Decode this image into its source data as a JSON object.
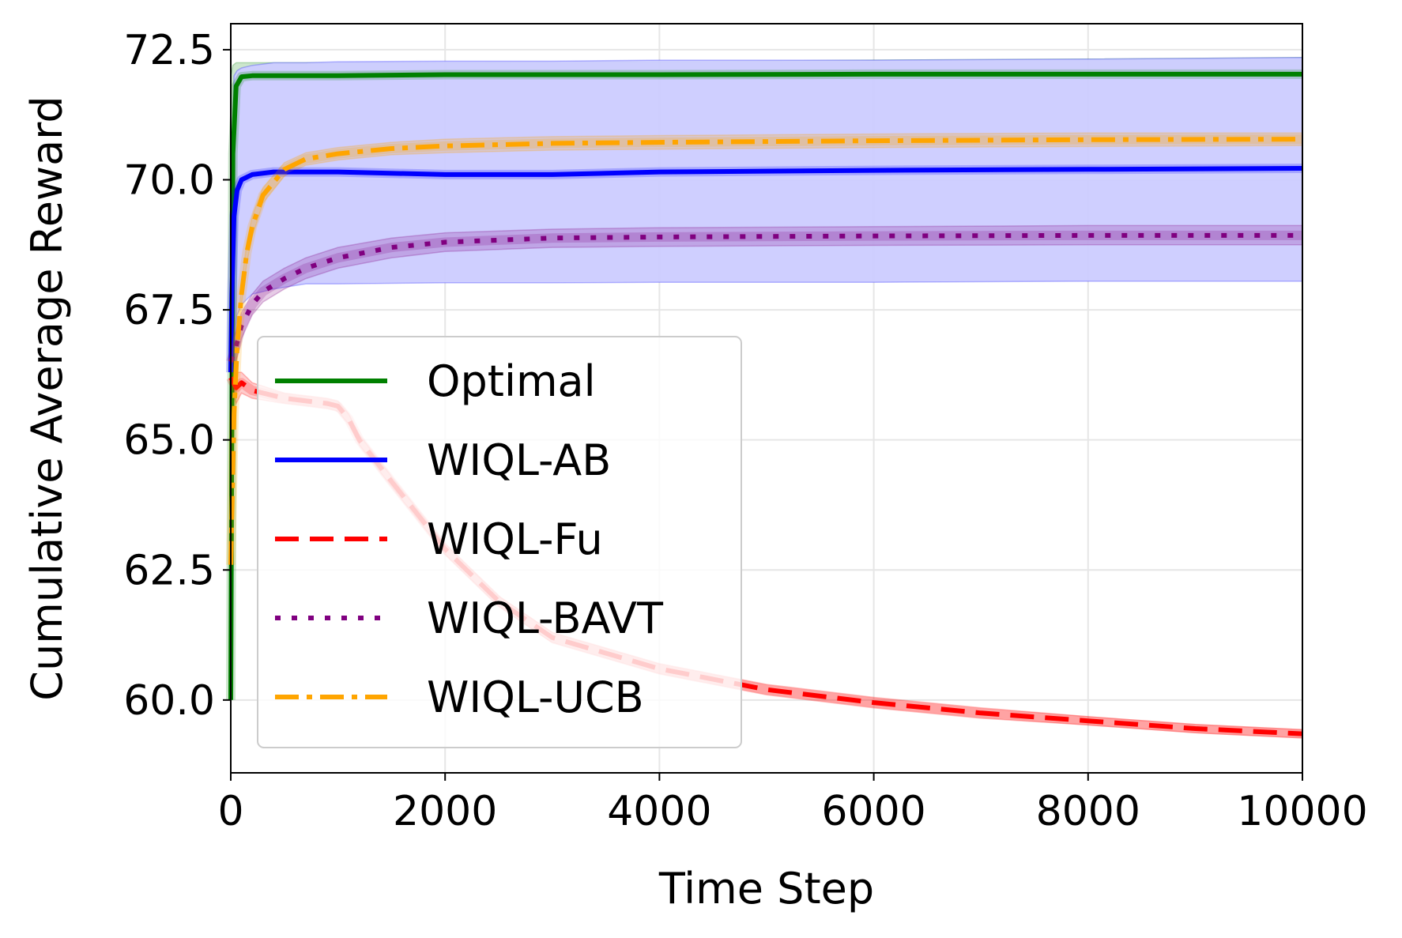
{
  "chart_data": {
    "type": "line",
    "xlabel": "Time Step",
    "ylabel": "Cumulative Average Reward",
    "xlim": [
      0,
      10000
    ],
    "ylim": [
      58.6,
      73.0
    ],
    "xticks": [
      0,
      2000,
      4000,
      6000,
      8000,
      10000
    ],
    "xtick_labels": [
      "0",
      "2000",
      "4000",
      "6000",
      "8000",
      "10000"
    ],
    "yticks": [
      60.0,
      62.5,
      65.0,
      67.5,
      70.0,
      72.5
    ],
    "ytick_labels": [
      "60.0",
      "62.5",
      "65.0",
      "67.5",
      "70.0",
      "72.5"
    ],
    "grid": true,
    "legend_position": "lower-left",
    "series": [
      {
        "name": "Optimal",
        "color": "#008000",
        "style": "solid",
        "x": [
          0,
          20,
          50,
          100,
          200,
          400,
          1000,
          2000,
          4000,
          6000,
          8000,
          10000
        ],
        "y": [
          60.0,
          70.5,
          71.8,
          71.98,
          72.0,
          72.0,
          72.0,
          72.02,
          72.02,
          72.03,
          72.03,
          72.03
        ],
        "band_upper": [
          72.0,
          72.2,
          72.25,
          72.25,
          72.25,
          72.25,
          72.25,
          72.25,
          72.27,
          72.3,
          72.32,
          72.35
        ],
        "band_lower": [
          60.0,
          69.5,
          71.6,
          71.9,
          71.95,
          71.95,
          71.95,
          71.98,
          71.98,
          72.0,
          72.0,
          72.0
        ]
      },
      {
        "name": "WIQL-AB",
        "color": "#0000ff",
        "style": "solid",
        "band_color": "#ccccff",
        "x": [
          0,
          10,
          30,
          60,
          100,
          200,
          400,
          700,
          1000,
          2000,
          3000,
          4000,
          6000,
          8000,
          10000
        ],
        "y": [
          66.3,
          67.8,
          69.3,
          69.8,
          70.0,
          70.1,
          70.15,
          70.15,
          70.15,
          70.1,
          70.1,
          70.15,
          70.18,
          70.2,
          70.22
        ],
        "band_upper": [
          66.5,
          70.5,
          72.0,
          72.1,
          72.15,
          72.2,
          72.25,
          72.25,
          72.27,
          72.28,
          72.28,
          72.3,
          72.3,
          72.32,
          72.35
        ],
        "band_lower": [
          66.0,
          66.5,
          67.0,
          67.4,
          67.6,
          67.8,
          67.9,
          68.0,
          68.0,
          68.02,
          68.02,
          68.03,
          68.03,
          68.05,
          68.05
        ]
      },
      {
        "name": "WIQL-Fu",
        "color": "#ff0000",
        "style": "dashed",
        "x": [
          0,
          50,
          100,
          200,
          500,
          900,
          1000,
          1100,
          1200,
          1500,
          2000,
          2500,
          3000,
          4000,
          5000,
          6000,
          7000,
          8000,
          9000,
          10000
        ],
        "y": [
          66.2,
          66.0,
          66.1,
          65.95,
          65.8,
          65.7,
          65.65,
          65.4,
          65.0,
          64.2,
          62.9,
          61.9,
          61.2,
          60.6,
          60.2,
          59.95,
          59.75,
          59.6,
          59.45,
          59.35
        ],
        "band_upper": [
          66.4,
          66.3,
          66.3,
          66.1,
          65.9,
          65.8,
          65.75,
          65.5,
          65.1,
          64.3,
          63.0,
          62.0,
          61.3,
          60.7,
          60.3,
          60.05,
          59.85,
          59.68,
          59.53,
          59.43
        ],
        "band_lower": [
          66.0,
          65.7,
          65.9,
          65.8,
          65.7,
          65.6,
          65.55,
          65.3,
          64.9,
          64.1,
          62.8,
          61.8,
          61.1,
          60.5,
          60.1,
          59.85,
          59.65,
          59.52,
          59.37,
          59.27
        ]
      },
      {
        "name": "WIQL-BAVT",
        "color": "#800080",
        "style": "dotted",
        "x": [
          0,
          50,
          100,
          200,
          300,
          500,
          700,
          1000,
          1500,
          2000,
          3000,
          4000,
          6000,
          8000,
          10000
        ],
        "y": [
          66.5,
          66.8,
          67.2,
          67.6,
          67.85,
          68.1,
          68.3,
          68.5,
          68.7,
          68.8,
          68.88,
          68.9,
          68.92,
          68.93,
          68.93
        ],
        "band_upper": [
          66.8,
          67.1,
          67.45,
          67.8,
          68.05,
          68.3,
          68.5,
          68.7,
          68.88,
          68.98,
          69.05,
          69.08,
          69.1,
          69.12,
          69.12
        ],
        "band_lower": [
          66.2,
          66.5,
          66.95,
          67.4,
          67.65,
          67.9,
          68.1,
          68.3,
          68.5,
          68.62,
          68.7,
          68.72,
          68.74,
          68.75,
          68.75
        ]
      },
      {
        "name": "WIQL-UCB",
        "color": "#ffa500",
        "style": "dashdot",
        "x": [
          0,
          15,
          30,
          60,
          100,
          150,
          200,
          300,
          500,
          700,
          1000,
          1500,
          2000,
          3000,
          4000,
          6000,
          8000,
          10000
        ],
        "y": [
          62.6,
          64.0,
          65.5,
          66.8,
          67.8,
          68.6,
          69.1,
          69.7,
          70.2,
          70.4,
          70.5,
          70.6,
          70.65,
          70.7,
          70.72,
          70.75,
          70.77,
          70.78
        ],
        "band_upper": [
          63.0,
          64.4,
          65.9,
          67.1,
          68.0,
          68.8,
          69.3,
          69.85,
          70.33,
          70.52,
          70.62,
          70.72,
          70.78,
          70.83,
          70.85,
          70.88,
          70.9,
          70.9
        ],
        "band_lower": [
          62.2,
          63.6,
          65.1,
          66.5,
          67.6,
          68.4,
          68.9,
          69.55,
          70.07,
          70.28,
          70.38,
          70.48,
          70.52,
          70.57,
          70.59,
          70.62,
          70.64,
          70.66
        ]
      }
    ]
  }
}
